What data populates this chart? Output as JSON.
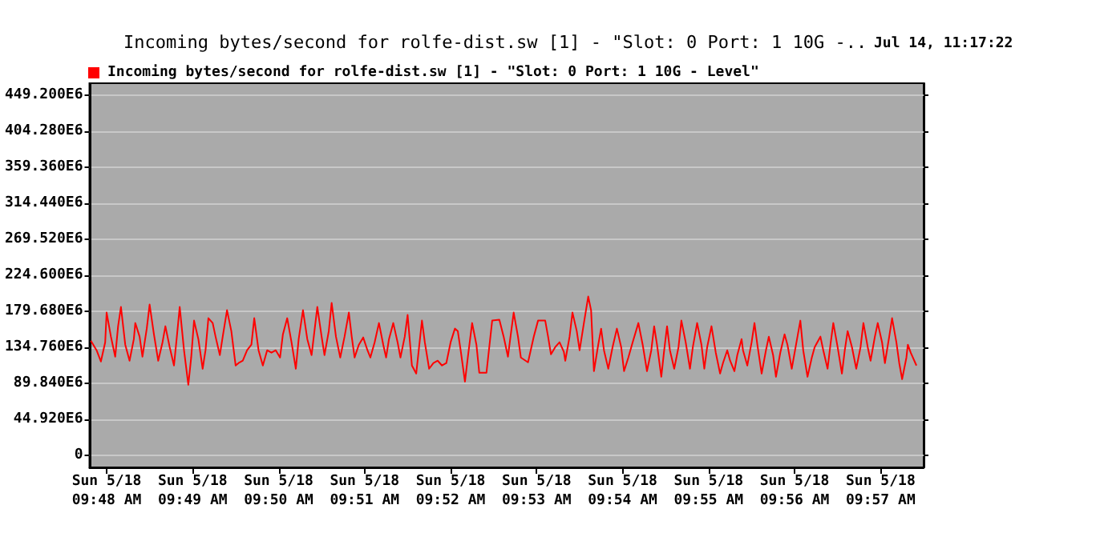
{
  "chart_data": {
    "type": "line",
    "title": "Incoming bytes/second for rolfe-dist.sw [1] - \"Slot: 0 Port: 1 10G -..",
    "annotations": [
      "Jul 14, 11:17:22"
    ],
    "legend": "top left",
    "grid": "y",
    "marker": "none",
    "xlim": [
      "--05-18T09:47:48",
      "--05-18T09:57:30"
    ],
    "xticks": [
      {
        "value": "--05-18T09:48",
        "label": "Sun 5/18\n09:48 AM"
      },
      {
        "value": "--05-18T09:49",
        "label": "Sun 5/18\n09:49 AM"
      },
      {
        "value": "--05-18T09:50",
        "label": "Sun 5/18\n09:50 AM"
      },
      {
        "value": "--05-18T09:51",
        "label": "Sun 5/18\n09:51 AM"
      },
      {
        "value": "--05-18T09:52",
        "label": "Sun 5/18\n09:52 AM"
      },
      {
        "value": "--05-18T09:53",
        "label": "Sun 5/18\n09:53 AM"
      },
      {
        "value": "--05-18T09:54",
        "label": "Sun 5/18\n09:54 AM"
      },
      {
        "value": "--05-18T09:55",
        "label": "Sun 5/18\n09:55 AM"
      },
      {
        "value": "--05-18T09:56",
        "label": "Sun 5/18\n09:56 AM"
      },
      {
        "value": "--05-18T09:57",
        "label": "Sun 5/18\n09:57 AM"
      }
    ],
    "ylim": [
      -15000000.0,
      464000000.0
    ],
    "yticks": [
      0,
      {
        "value": 44920000.0,
        "label": "44.920E6"
      },
      {
        "value": 89840000.0,
        "label": "89.840E6"
      },
      {
        "value": 134760000.0,
        "label": "134.760E6"
      },
      {
        "value": 179680000.0,
        "label": "179.680E6"
      },
      {
        "value": 224600000.0,
        "label": "224.600E6"
      },
      {
        "value": 269520000.0,
        "label": "269.520E6"
      },
      {
        "value": 314440000.0,
        "label": "314.440E6"
      },
      {
        "value": 359360000.0,
        "label": "359.360E6"
      },
      {
        "value": 404280000.0,
        "label": "404.280E6"
      },
      {
        "value": 449200000.0,
        "label": "449.200E6"
      }
    ],
    "series": [
      {
        "name": "Incoming bytes/second for rolfe-dist.sw [1] - \"Slot: 0 Port: 1 10G - Level\"",
        "color": "#ff0000",
        "x": [
          "--05-18T09:47:49",
          "--05-18T09:47:53",
          "--05-18T09:47:56",
          "--05-18T09:47:59",
          "--05-18T09:48:00",
          "--05-18T09:48:03",
          "--05-18T09:48:06",
          "--05-18T09:48:08",
          "--05-18T09:48:10",
          "--05-18T09:48:13",
          "--05-18T09:48:16",
          "--05-18T09:48:19",
          "--05-18T09:48:20",
          "--05-18T09:48:23",
          "--05-18T09:48:25",
          "--05-18T09:48:28",
          "--05-18T09:48:30",
          "--05-18T09:48:33",
          "--05-18T09:48:36",
          "--05-18T09:48:39",
          "--05-18T09:48:41",
          "--05-18T09:48:44",
          "--05-18T09:48:47",
          "--05-18T09:48:49",
          "--05-18T09:48:51",
          "--05-18T09:48:54",
          "--05-18T09:48:57",
          "--05-18T09:48:59",
          "--05-18T09:49:01",
          "--05-18T09:49:04",
          "--05-18T09:49:07",
          "--05-18T09:49:09",
          "--05-18T09:49:11",
          "--05-18T09:49:14",
          "--05-18T09:49:16",
          "--05-18T09:49:19",
          "--05-18T09:49:21",
          "--05-18T09:49:24",
          "--05-18T09:49:27",
          "--05-18T09:49:30",
          "--05-18T09:49:32",
          "--05-18T09:49:35",
          "--05-18T09:49:38",
          "--05-18T09:49:41",
          "--05-18T09:49:43",
          "--05-18T09:49:46",
          "--05-18T09:49:49",
          "--05-18T09:49:52",
          "--05-18T09:49:55",
          "--05-18T09:49:58",
          "--05-18T09:50:01",
          "--05-18T09:50:03",
          "--05-18T09:50:06",
          "--05-18T09:50:09",
          "--05-18T09:50:12",
          "--05-18T09:50:14",
          "--05-18T09:50:17",
          "--05-18T09:50:20",
          "--05-18T09:50:23",
          "--05-18T09:50:25",
          "--05-18T09:50:27",
          "--05-18T09:50:30",
          "--05-18T09:50:32",
          "--05-18T09:50:35",
          "--05-18T09:50:37",
          "--05-18T09:50:40",
          "--05-18T09:50:43",
          "--05-18T09:50:46",
          "--05-18T09:50:49",
          "--05-18T09:50:51",
          "--05-18T09:50:53",
          "--05-18T09:50:56",
          "--05-18T09:50:59",
          "--05-18T09:51:02",
          "--05-18T09:51:04",
          "--05-18T09:51:07",
          "--05-18T09:51:10",
          "--05-18T09:51:13",
          "--05-18T09:51:15",
          "--05-18T09:51:17",
          "--05-18T09:51:20",
          "--05-18T09:51:23",
          "--05-18T09:51:25",
          "--05-18T09:51:28",
          "--05-18T09:51:30",
          "--05-18T09:51:33",
          "--05-18T09:51:36",
          "--05-18T09:51:38",
          "--05-18T09:51:40",
          "--05-18T09:51:42",
          "--05-18T09:51:45",
          "--05-18T09:51:48",
          "--05-18T09:51:51",
          "--05-18T09:51:54",
          "--05-18T09:51:57",
          "--05-18T09:52:00",
          "--05-18T09:52:03",
          "--05-18T09:52:05",
          "--05-18T09:52:07",
          "--05-18T09:52:10",
          "--05-18T09:52:12",
          "--05-18T09:52:15",
          "--05-18T09:52:18",
          "--05-18T09:52:20",
          "--05-18T09:52:25",
          "--05-18T09:52:29",
          "--05-18T09:52:34",
          "--05-18T09:52:37",
          "--05-18T09:52:40",
          "--05-18T09:52:42",
          "--05-18T09:52:44",
          "--05-18T09:52:47",
          "--05-18T09:52:49",
          "--05-18T09:52:54",
          "--05-18T09:52:58",
          "--05-18T09:53:01",
          "--05-18T09:53:06",
          "--05-18T09:53:08",
          "--05-18T09:53:10",
          "--05-18T09:53:13",
          "--05-18T09:53:16",
          "--05-18T09:53:19",
          "--05-18T09:53:20",
          "--05-18T09:53:23",
          "--05-18T09:53:25",
          "--05-18T09:53:28",
          "--05-18T09:53:30",
          "--05-18T09:53:33",
          "--05-18T09:53:36",
          "--05-18T09:53:38",
          "--05-18T09:53:40",
          "--05-18T09:53:43",
          "--05-18T09:53:45",
          "--05-18T09:53:47",
          "--05-18T09:53:50",
          "--05-18T09:53:53",
          "--05-18T09:53:56",
          "--05-18T09:53:59",
          "--05-18T09:54:01",
          "--05-18T09:54:04",
          "--05-18T09:54:07",
          "--05-18T09:54:11",
          "--05-18T09:54:14",
          "--05-18T09:54:17",
          "--05-18T09:54:20",
          "--05-18T09:54:22",
          "--05-18T09:54:24",
          "--05-18T09:54:27",
          "--05-18T09:54:29",
          "--05-18T09:54:31",
          "--05-18T09:54:33",
          "--05-18T09:54:36",
          "--05-18T09:54:39",
          "--05-18T09:54:41",
          "--05-18T09:54:44",
          "--05-18T09:54:47",
          "--05-18T09:54:49",
          "--05-18T09:54:52",
          "--05-18T09:54:55",
          "--05-18T09:54:57",
          "--05-18T09:54:59",
          "--05-18T09:55:02",
          "--05-18T09:55:05",
          "--05-18T09:55:08",
          "--05-18T09:55:10",
          "--05-18T09:55:13",
          "--05-18T09:55:15",
          "--05-18T09:55:18",
          "--05-18T09:55:20",
          "--05-18T09:55:23",
          "--05-18T09:55:24",
          "--05-18T09:55:27",
          "--05-18T09:55:30",
          "--05-18T09:55:32",
          "--05-18T09:55:34",
          "--05-18T09:55:37",
          "--05-18T09:55:40",
          "--05-18T09:55:42",
          "--05-18T09:55:45",
          "--05-18T09:55:47",
          "--05-18T09:55:50",
          "--05-18T09:55:53",
          "--05-18T09:55:55",
          "--05-18T09:55:58",
          "--05-18T09:56:01",
          "--05-18T09:56:04",
          "--05-18T09:56:06",
          "--05-18T09:56:09",
          "--05-18T09:56:12",
          "--05-18T09:56:14",
          "--05-18T09:56:18",
          "--05-18T09:56:20",
          "--05-18T09:56:23",
          "--05-18T09:56:25",
          "--05-18T09:56:27",
          "--05-18T09:56:30",
          "--05-18T09:56:33",
          "--05-18T09:56:35",
          "--05-18T09:56:37",
          "--05-18T09:56:40",
          "--05-18T09:56:43",
          "--05-18T09:56:46",
          "--05-18T09:56:48",
          "--05-18T09:56:51",
          "--05-18T09:56:53",
          "--05-18T09:56:56",
          "--05-18T09:56:58",
          "--05-18T09:57:01",
          "--05-18T09:57:03",
          "--05-18T09:57:06",
          "--05-18T09:57:08",
          "--05-18T09:57:11",
          "--05-18T09:57:13",
          "--05-18T09:57:15",
          "--05-18T09:57:18",
          "--05-18T09:57:19",
          "--05-18T09:57:21",
          "--05-18T09:57:25"
        ],
        "values": [
          143000000.0,
          131000000.0,
          117000000.0,
          141000000.0,
          178000000.0,
          148000000.0,
          123000000.0,
          161000000.0,
          185000000.0,
          138000000.0,
          118000000.0,
          145000000.0,
          165000000.0,
          148000000.0,
          123000000.0,
          158000000.0,
          188000000.0,
          151000000.0,
          118000000.0,
          141000000.0,
          161000000.0,
          135000000.0,
          112000000.0,
          148000000.0,
          185000000.0,
          131000000.0,
          88000000.0,
          122000000.0,
          168000000.0,
          145000000.0,
          108000000.0,
          131000000.0,
          171000000.0,
          165000000.0,
          148000000.0,
          125000000.0,
          148000000.0,
          181000000.0,
          155000000.0,
          112000000.0,
          115000000.0,
          118000000.0,
          131000000.0,
          138000000.0,
          171000000.0,
          131000000.0,
          112000000.0,
          131000000.0,
          128000000.0,
          131000000.0,
          122000000.0,
          151000000.0,
          171000000.0,
          141000000.0,
          108000000.0,
          145000000.0,
          181000000.0,
          145000000.0,
          125000000.0,
          155000000.0,
          185000000.0,
          148000000.0,
          125000000.0,
          155000000.0,
          190000000.0,
          148000000.0,
          122000000.0,
          148000000.0,
          178000000.0,
          148000000.0,
          122000000.0,
          138000000.0,
          147000000.0,
          131000000.0,
          122000000.0,
          141000000.0,
          165000000.0,
          138000000.0,
          122000000.0,
          145000000.0,
          165000000.0,
          141000000.0,
          122000000.0,
          148000000.0,
          175000000.0,
          112000000.0,
          102000000.0,
          135000000.0,
          168000000.0,
          141000000.0,
          108000000.0,
          115000000.0,
          118000000.0,
          112000000.0,
          115000000.0,
          141000000.0,
          158000000.0,
          155000000.0,
          131000000.0,
          92000000.0,
          122000000.0,
          165000000.0,
          138000000.0,
          103000000.0,
          103000000.0,
          168000000.0,
          169000000.0,
          148000000.0,
          123000000.0,
          151000000.0,
          178000000.0,
          148000000.0,
          122000000.0,
          116000000.0,
          148000000.0,
          168000000.0,
          168000000.0,
          148000000.0,
          126000000.0,
          135000000.0,
          141000000.0,
          129000000.0,
          118000000.0,
          148000000.0,
          178000000.0,
          155000000.0,
          131000000.0,
          165000000.0,
          198000000.0,
          181000000.0,
          105000000.0,
          138000000.0,
          158000000.0,
          131000000.0,
          108000000.0,
          135000000.0,
          158000000.0,
          135000000.0,
          105000000.0,
          122000000.0,
          141000000.0,
          165000000.0,
          138000000.0,
          105000000.0,
          131000000.0,
          161000000.0,
          138000000.0,
          98000000.0,
          131000000.0,
          161000000.0,
          131000000.0,
          108000000.0,
          135000000.0,
          168000000.0,
          141000000.0,
          108000000.0,
          135000000.0,
          165000000.0,
          138000000.0,
          108000000.0,
          135000000.0,
          161000000.0,
          128000000.0,
          102000000.0,
          115000000.0,
          131000000.0,
          118000000.0,
          105000000.0,
          125000000.0,
          145000000.0,
          131000000.0,
          112000000.0,
          141000000.0,
          165000000.0,
          138000000.0,
          102000000.0,
          131000000.0,
          148000000.0,
          125000000.0,
          98000000.0,
          128000000.0,
          151000000.0,
          138000000.0,
          108000000.0,
          138000000.0,
          168000000.0,
          131000000.0,
          98000000.0,
          122000000.0,
          135000000.0,
          148000000.0,
          131000000.0,
          108000000.0,
          138000000.0,
          165000000.0,
          135000000.0,
          102000000.0,
          131000000.0,
          155000000.0,
          135000000.0,
          108000000.0,
          135000000.0,
          165000000.0,
          135000000.0,
          118000000.0,
          148000000.0,
          165000000.0,
          141000000.0,
          115000000.0,
          148000000.0,
          171000000.0,
          141000000.0,
          115000000.0,
          95000000.0,
          122000000.0,
          138000000.0,
          128000000.0,
          112000000.0
        ]
      }
    ]
  }
}
